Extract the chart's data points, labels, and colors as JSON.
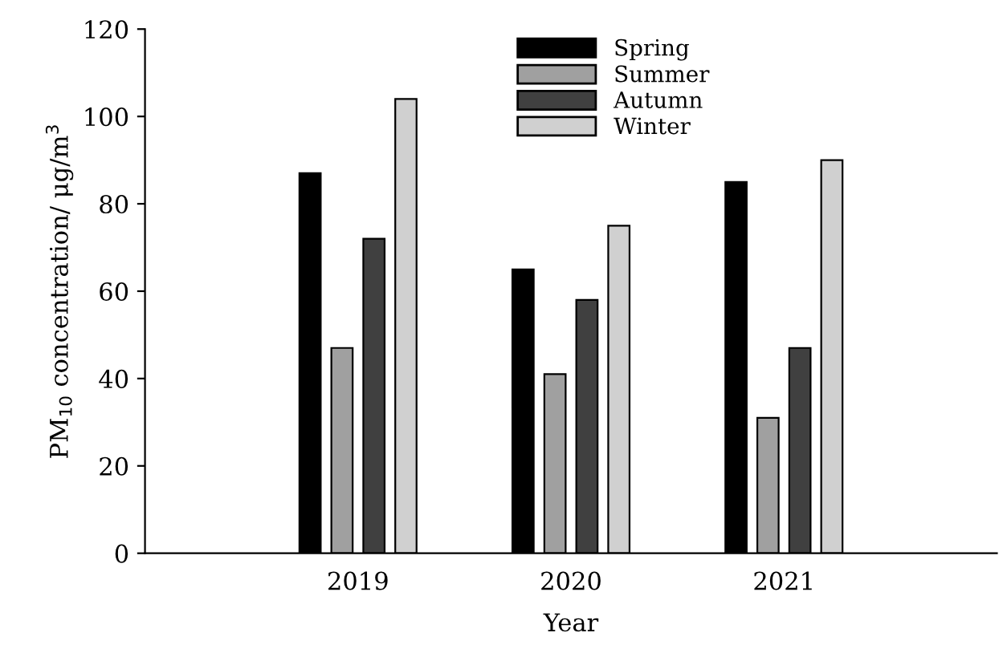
{
  "chart_data": {
    "type": "bar",
    "xlabel": "Year",
    "ylabel": "PM$_{10}$ concentration/ μg/m$^{3}$",
    "categories": [
      "2019",
      "2020",
      "2021"
    ],
    "series": [
      {
        "name": "Spring",
        "color": "#000000",
        "values": [
          87,
          65,
          85
        ]
      },
      {
        "name": "Summer",
        "color": "#a0a0a0",
        "values": [
          47,
          41,
          31
        ]
      },
      {
        "name": "Autumn",
        "color": "#404040",
        "values": [
          72,
          58,
          47
        ]
      },
      {
        "name": "Winter",
        "color": "#d0d0d0",
        "values": [
          104,
          75,
          90
        ]
      }
    ],
    "ylim": [
      0,
      120
    ],
    "yticks": [
      0,
      20,
      40,
      60,
      80,
      100,
      120
    ],
    "grid": false,
    "legend": "top"
  }
}
